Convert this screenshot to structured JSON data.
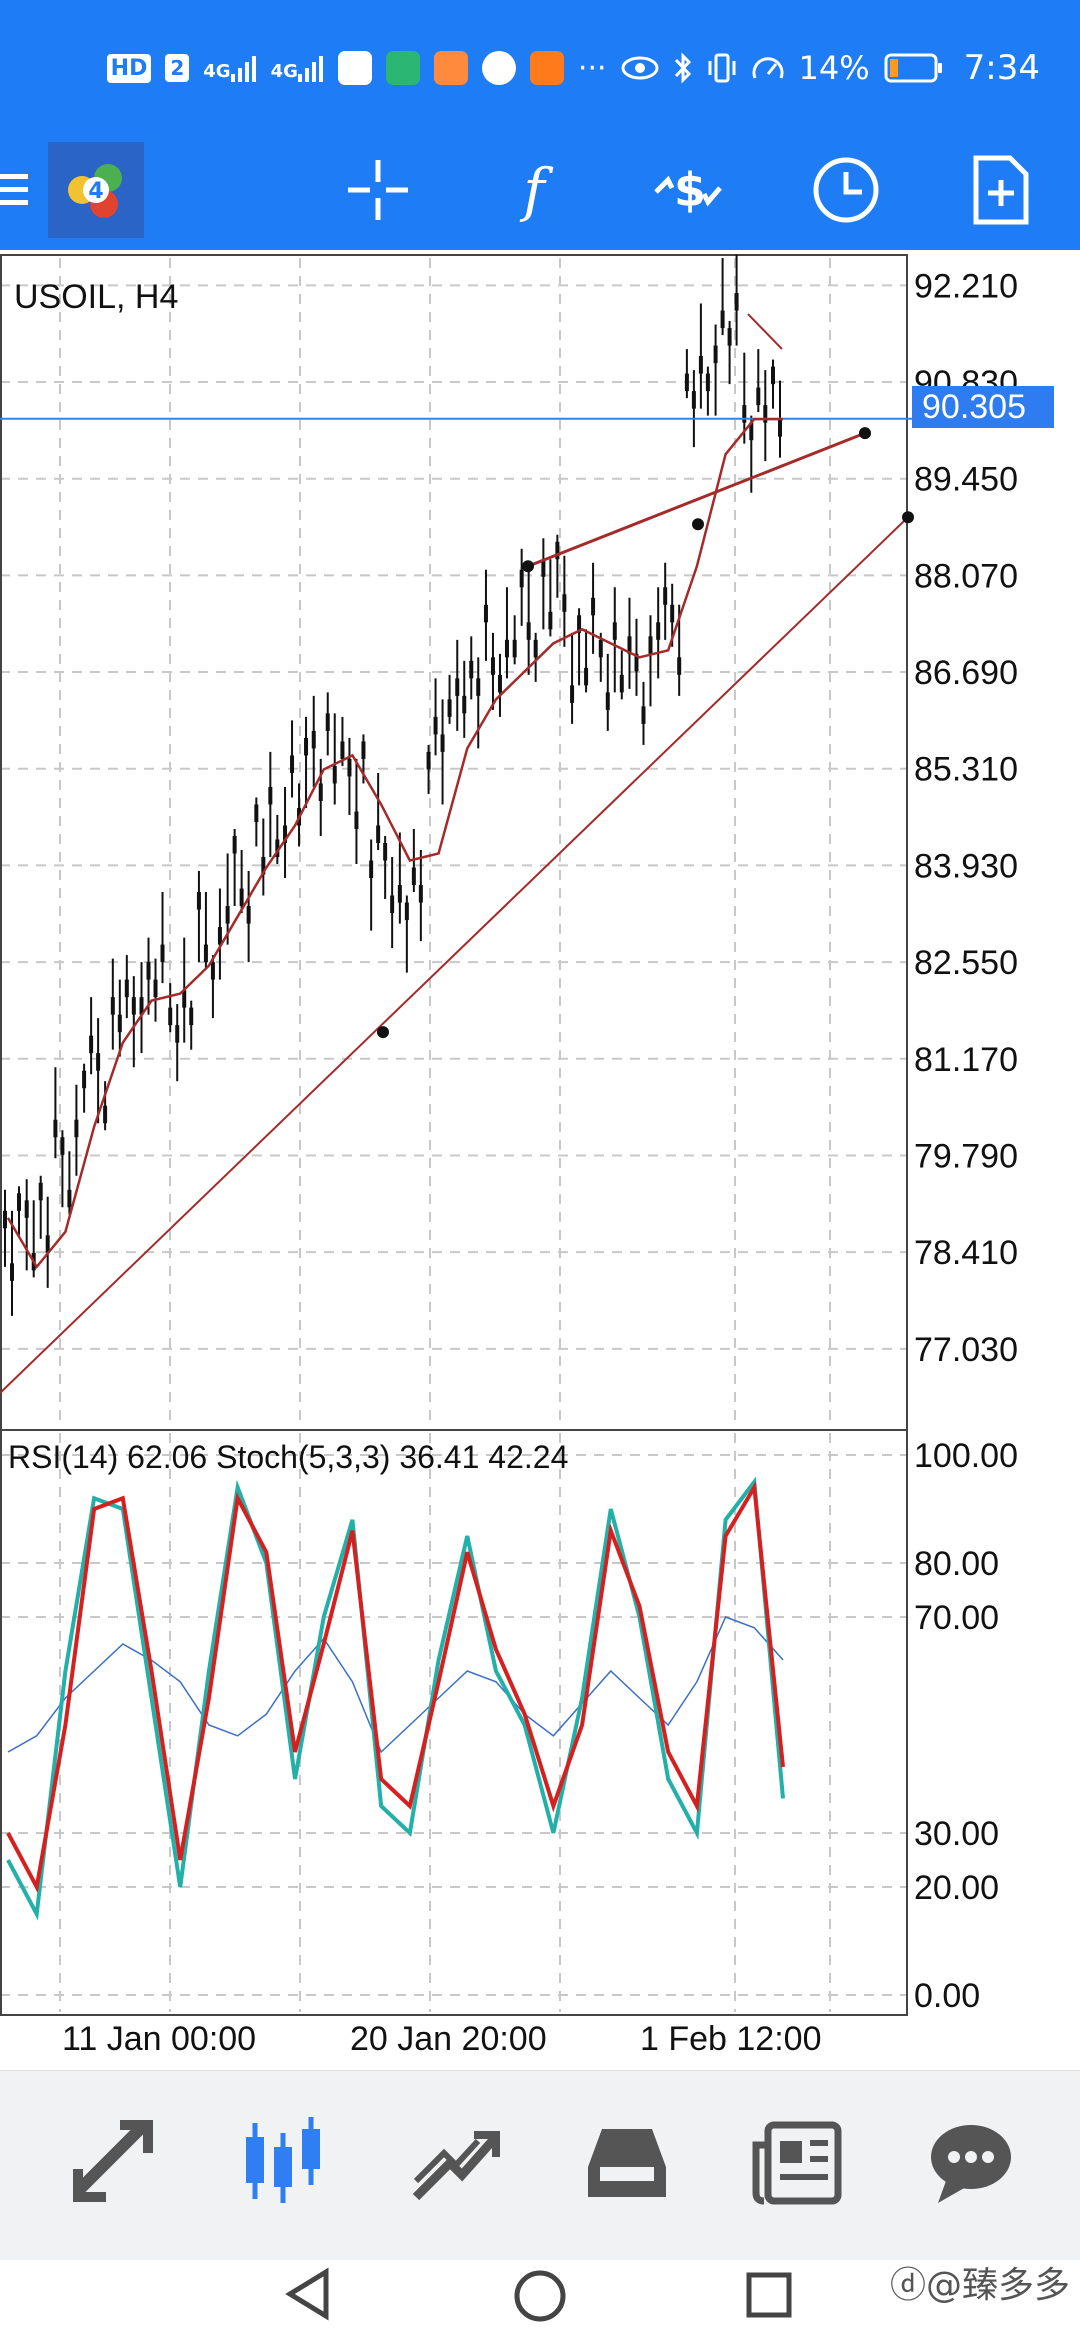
{
  "status_bar": {
    "network_hd": "HD",
    "sim2": "2",
    "signal1": "4G",
    "signal2": "4G",
    "more_dots": "···",
    "battery_percent": "14%",
    "time": "7:34"
  },
  "chart": {
    "symbol_timeframe": "USOIL, H4",
    "current_price": "90.305",
    "price_ticks": [
      "92.210",
      "90.830",
      "89.450",
      "88.070",
      "86.690",
      "85.310",
      "83.930",
      "82.550",
      "81.170",
      "79.790",
      "78.410",
      "77.030"
    ],
    "indicator_label": "RSI(14) 62.06 Stoch(5,3,3) 36.41 42.24",
    "indicator_ticks": [
      "100.00",
      "80.00",
      "70.00",
      "30.00",
      "20.00",
      "0.00"
    ],
    "time_ticks": [
      "11 Jan 00:00",
      "20 Jan 20:00",
      "1 Feb 12:00"
    ]
  },
  "chart_data": {
    "type": "line",
    "price_pane": {
      "ylim": [
        75.9,
        92.6
      ],
      "series": [
        {
          "values": [
            78.5,
            78.9,
            79.8,
            81.0,
            81.8,
            82.3,
            81.9,
            82.8,
            83.6,
            84.3,
            85.0,
            85.6,
            85.2,
            84.0,
            83.4,
            85.8,
            86.6,
            86.9,
            87.4,
            87.8,
            87.0,
            86.9,
            86.7,
            87.4,
            90.7,
            91.6,
            90.5,
            90.3
          ]
        },
        {
          "values": [
            78.9,
            78.2,
            78.7,
            80.2,
            81.4,
            82.0,
            82.1,
            82.5,
            83.2,
            83.9,
            84.5,
            85.3,
            85.5,
            84.8,
            84.0,
            84.1,
            85.6,
            86.3,
            86.7,
            87.1,
            87.3,
            87.1,
            86.9,
            87.0,
            88.2,
            89.8,
            90.3,
            90.3
          ]
        }
      ]
    },
    "indicator_pane": {
      "ylim": [
        0,
        100
      ],
      "series": [
        {
          "name": "RSI(14)",
          "values": [
            45,
            48,
            55,
            60,
            65,
            62,
            58,
            50,
            48,
            52,
            60,
            66,
            58,
            45,
            50,
            55,
            60,
            58,
            52,
            48,
            54,
            60,
            55,
            50,
            58,
            70,
            68,
            62.06
          ]
        },
        {
          "values": [
            25,
            15,
            60,
            92,
            90,
            55,
            20,
            60,
            94,
            80,
            40,
            70,
            88,
            35,
            30,
            62,
            85,
            60,
            50,
            30,
            55,
            90,
            70,
            40,
            30,
            88,
            95,
            36.41
          ]
        },
        {
          "values": [
            30,
            20,
            50,
            90,
            92,
            60,
            25,
            55,
            92,
            82,
            45,
            65,
            86,
            40,
            35,
            58,
            82,
            64,
            52,
            35,
            50,
            86,
            72,
            45,
            35,
            85,
            94,
            42.24
          ]
        }
      ]
    }
  }
}
